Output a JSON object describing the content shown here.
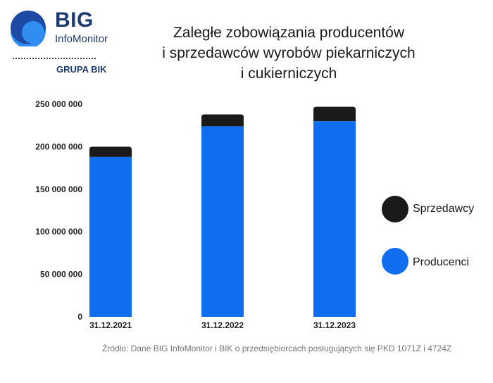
{
  "logo": {
    "name": "BIG",
    "subtitle": "InfoMonitor",
    "group": "GRUPA BIK",
    "colors": {
      "circle_dark": "#1e4aa6",
      "circle_light": "#2f8ef0",
      "text": "#1d3a6e"
    }
  },
  "chart_data": {
    "type": "bar",
    "stacked": true,
    "title": [
      "Zaległe zobowiązania producentów",
      "i sprzedawców wyrobów piekarniczych",
      "i cukierniczych"
    ],
    "categories": [
      "31.12.2021",
      "31.12.2022",
      "31.12.2023"
    ],
    "series": [
      {
        "name": "Producenci",
        "color": "#0f6ef0",
        "values": [
          188000000,
          224000000,
          230000000
        ]
      },
      {
        "name": "Sprzedawcy",
        "color": "#1a1a1a",
        "values": [
          12000000,
          14000000,
          17000000
        ]
      }
    ],
    "ylim": [
      0,
      250000000
    ],
    "yticks": [
      {
        "value": 0,
        "label": "0"
      },
      {
        "value": 50000000,
        "label": "50 000 000"
      },
      {
        "value": 100000000,
        "label": "100 000 000"
      },
      {
        "value": 150000000,
        "label": "150 000 000"
      },
      {
        "value": 200000000,
        "label": "200 000 000"
      },
      {
        "value": 250000000,
        "label": "250 000 000"
      }
    ],
    "grid": false,
    "legend": {
      "position": "right",
      "items": [
        {
          "name": "Sprzedawcy",
          "label": "Sprzedawcy",
          "color": "#1a1a1a"
        },
        {
          "name": "Producenci",
          "label": "Producenci",
          "color": "#0f6ef0"
        }
      ]
    }
  },
  "source": "Źródło: Dane BIG InfoMonitor i BIK o przedsiębiorcach posługujących się PKD 1071Z i 4724Z"
}
